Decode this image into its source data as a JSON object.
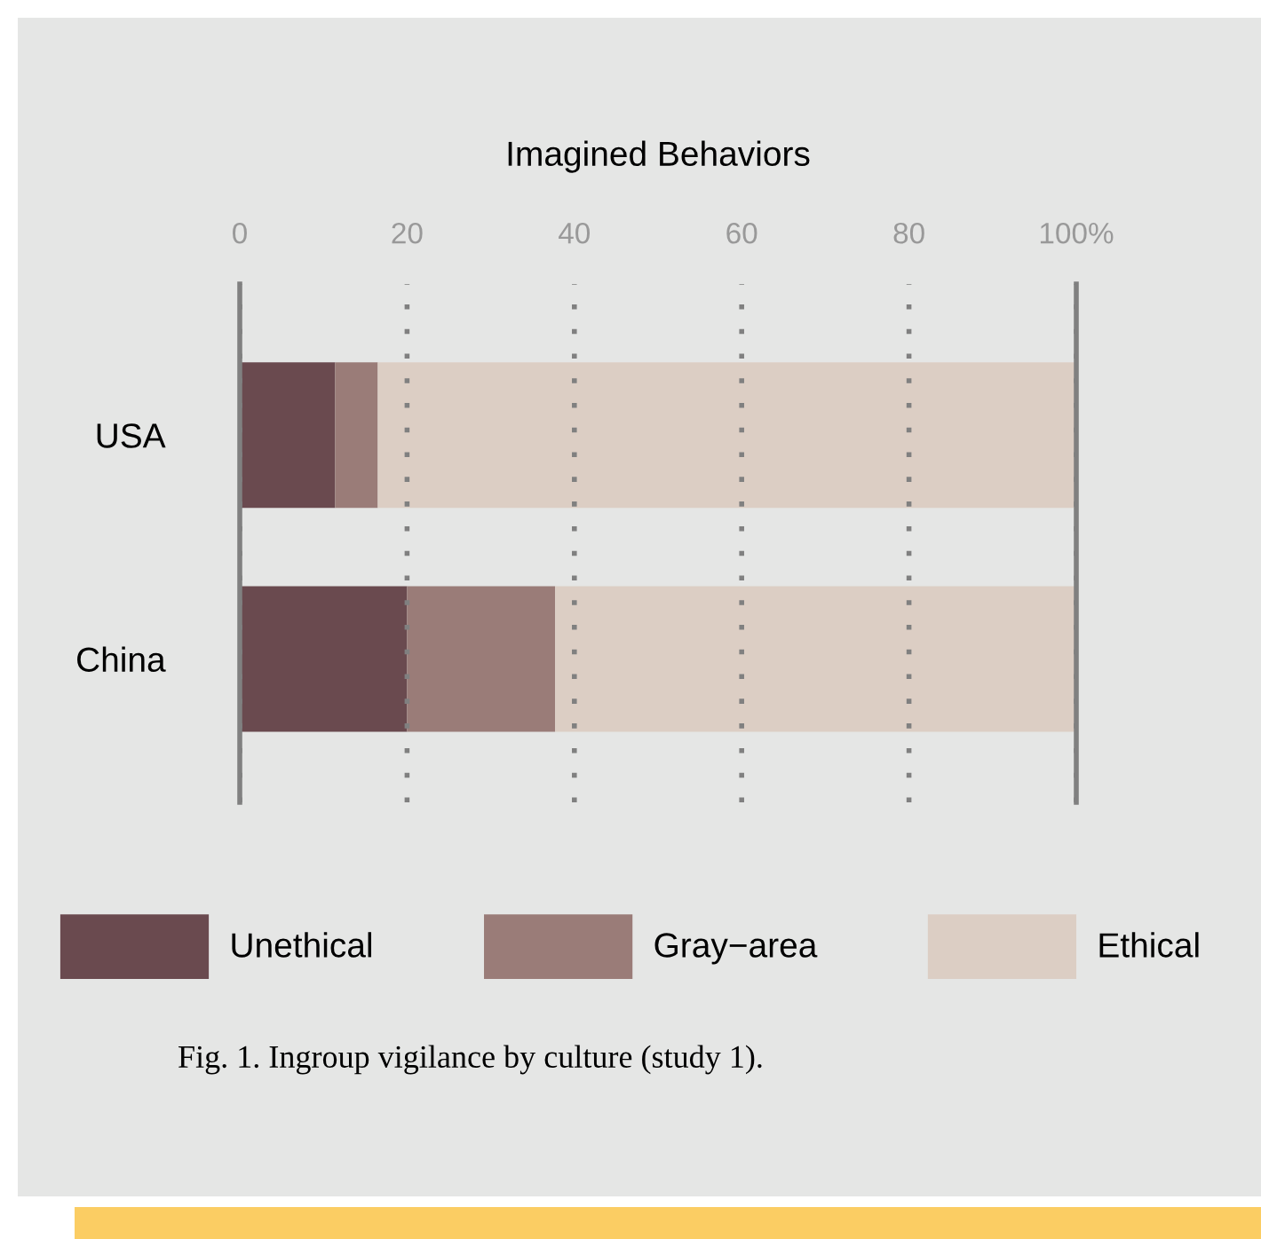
{
  "chart_data": {
    "type": "bar",
    "orientation": "horizontal",
    "stacked": true,
    "title": "Imagined Behaviors",
    "categories": [
      "USA",
      "China"
    ],
    "series": [
      {
        "name": "Unethical",
        "color": "#6a4a4f",
        "values": [
          11.4,
          20
        ]
      },
      {
        "name": "Gray−area",
        "color": "#9a7c78",
        "values": [
          5.1,
          17.7
        ]
      },
      {
        "name": "Ethical",
        "color": "#dccec4",
        "values": [
          83.5,
          62.3
        ]
      }
    ],
    "xlim": [
      0,
      100
    ],
    "xticks": [
      0,
      20,
      40,
      60,
      80,
      {
        "value": 100,
        "label": "100%"
      }
    ],
    "grid": "x",
    "legend": "bottom",
    "annotations": [
      "Fig. 1. Ingroup vigilance by culture (study 1)."
    ]
  }
}
